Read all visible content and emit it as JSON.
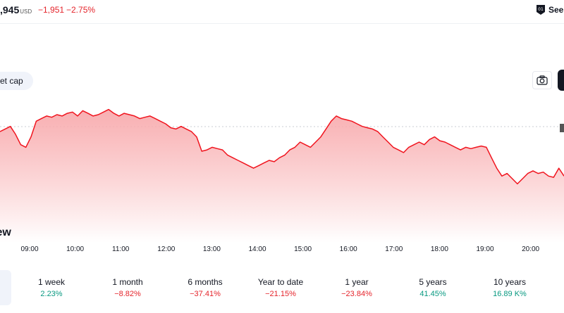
{
  "header": {
    "price": ",945",
    "price_unit": "USD",
    "change": "−1,951",
    "change_percent": "−2.75%",
    "see_label": "See",
    "see_icon": "badge-icon"
  },
  "chart_controls": {
    "metric_chip": "et cap",
    "camera_icon": "camera-icon"
  },
  "section": {
    "heading": "iew"
  },
  "colors": {
    "negative": "#e5242b",
    "positive": "#089981",
    "line": "#f0141e"
  },
  "chart_data": {
    "type": "area",
    "x_ticks": [
      "09:00",
      "10:00",
      "11:00",
      "12:00",
      "13:00",
      "14:00",
      "15:00",
      "16:00",
      "17:00",
      "18:00",
      "19:00",
      "20:00"
    ],
    "series": [
      {
        "values": [
          70,
          72,
          74,
          68,
          60,
          58,
          66,
          78,
          80,
          82,
          81,
          83,
          82,
          84,
          85,
          82,
          86,
          84,
          82,
          83,
          85,
          87,
          84,
          82,
          84,
          83,
          82,
          80,
          81,
          82,
          80,
          78,
          76,
          73,
          72,
          74,
          72,
          70,
          66,
          55,
          56,
          58,
          57,
          56,
          52,
          50,
          48,
          46,
          44,
          42,
          44,
          46,
          48,
          47,
          50,
          52,
          56,
          58,
          62,
          60,
          58,
          62,
          66,
          72,
          78,
          82,
          80,
          79,
          78,
          76,
          74,
          73,
          72,
          70,
          66,
          62,
          58,
          56,
          54,
          58,
          60,
          62,
          60,
          64,
          66,
          63,
          62,
          60,
          58,
          56,
          58,
          57,
          58,
          59,
          58,
          50,
          42,
          36,
          38,
          34,
          30,
          34,
          38,
          40,
          38,
          39,
          36,
          35,
          42,
          36
        ]
      }
    ],
    "grid": false,
    "legend": "none"
  },
  "periods": [
    {
      "label": "1 week",
      "value": "2.23%",
      "trend": "pos"
    },
    {
      "label": "1 month",
      "value": "−8.82%",
      "trend": "neg"
    },
    {
      "label": "6 months",
      "value": "−37.41%",
      "trend": "neg"
    },
    {
      "label": "Year to date",
      "value": "−21.15%",
      "trend": "neg"
    },
    {
      "label": "1 year",
      "value": "−23.84%",
      "trend": "neg"
    },
    {
      "label": "5 years",
      "value": "41.45%",
      "trend": "pos"
    },
    {
      "label": "10 years",
      "value": "16.89 K%",
      "trend": "pos"
    }
  ]
}
